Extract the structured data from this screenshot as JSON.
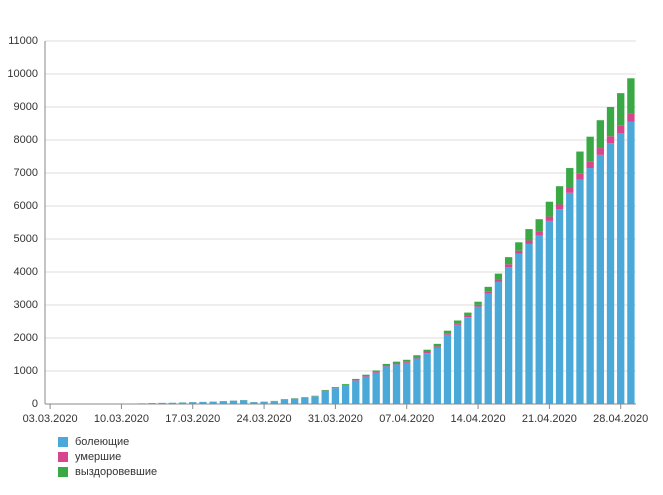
{
  "chart_data": {
    "type": "stacked_bar",
    "categories": [
      "03.03.2020",
      null,
      null,
      null,
      null,
      null,
      null,
      "10.03.2020",
      null,
      null,
      null,
      null,
      null,
      null,
      "17.03.2020",
      null,
      null,
      null,
      null,
      null,
      null,
      "24.03.2020",
      null,
      null,
      null,
      null,
      null,
      null,
      "31.03.2020",
      null,
      null,
      null,
      null,
      null,
      null,
      "07.04.2020",
      null,
      null,
      null,
      null,
      null,
      null,
      "14.04.2020",
      null,
      null,
      null,
      null,
      null,
      null,
      "21.04.2020",
      null,
      null,
      null,
      null,
      null,
      null,
      "28.04.2020",
      null
    ],
    "series": [
      {
        "name": "болеющие",
        "color": "#4aa9d9",
        "values": [
          3,
          3,
          4,
          6,
          6,
          8,
          8,
          10,
          13,
          20,
          28,
          35,
          38,
          45,
          55,
          60,
          70,
          85,
          100,
          115,
          55,
          65,
          85,
          135,
          160,
          190,
          230,
          400,
          480,
          560,
          710,
          830,
          950,
          1140,
          1200,
          1250,
          1380,
          1540,
          1710,
          2100,
          2400,
          2630,
          2950,
          3350,
          3700,
          4150,
          4550,
          4850,
          5100,
          5550,
          5900,
          6400,
          6800,
          7150,
          7550,
          7900,
          8200,
          8550
        ]
      },
      {
        "name": "умершие",
        "color": "#d6458e",
        "values": [
          0,
          0,
          0,
          0,
          0,
          0,
          0,
          0,
          0,
          0,
          0,
          0,
          0,
          0,
          1,
          1,
          1,
          1,
          1,
          1,
          1,
          1,
          1,
          2,
          3,
          4,
          5,
          6,
          9,
          12,
          15,
          18,
          22,
          25,
          28,
          30,
          32,
          35,
          38,
          42,
          45,
          50,
          55,
          65,
          75,
          85,
          95,
          105,
          115,
          130,
          145,
          160,
          175,
          190,
          205,
          215,
          230,
          250
        ]
      },
      {
        "name": "выздоровевшие",
        "color": "#3aa845",
        "values": [
          0,
          0,
          0,
          0,
          0,
          0,
          0,
          0,
          0,
          0,
          0,
          0,
          0,
          2,
          3,
          3,
          3,
          3,
          3,
          5,
          5,
          6,
          8,
          10,
          12,
          14,
          15,
          20,
          25,
          30,
          35,
          40,
          45,
          50,
          55,
          60,
          65,
          70,
          75,
          80,
          85,
          90,
          95,
          135,
          175,
          215,
          255,
          345,
          385,
          450,
          555,
          590,
          675,
          760,
          845,
          885,
          990,
          1070
        ]
      }
    ],
    "ylim": [
      0,
      11000
    ],
    "yticks": [
      0,
      1000,
      2000,
      3000,
      4000,
      5000,
      6000,
      7000,
      8000,
      9000,
      10000,
      11000
    ],
    "grid": true
  }
}
